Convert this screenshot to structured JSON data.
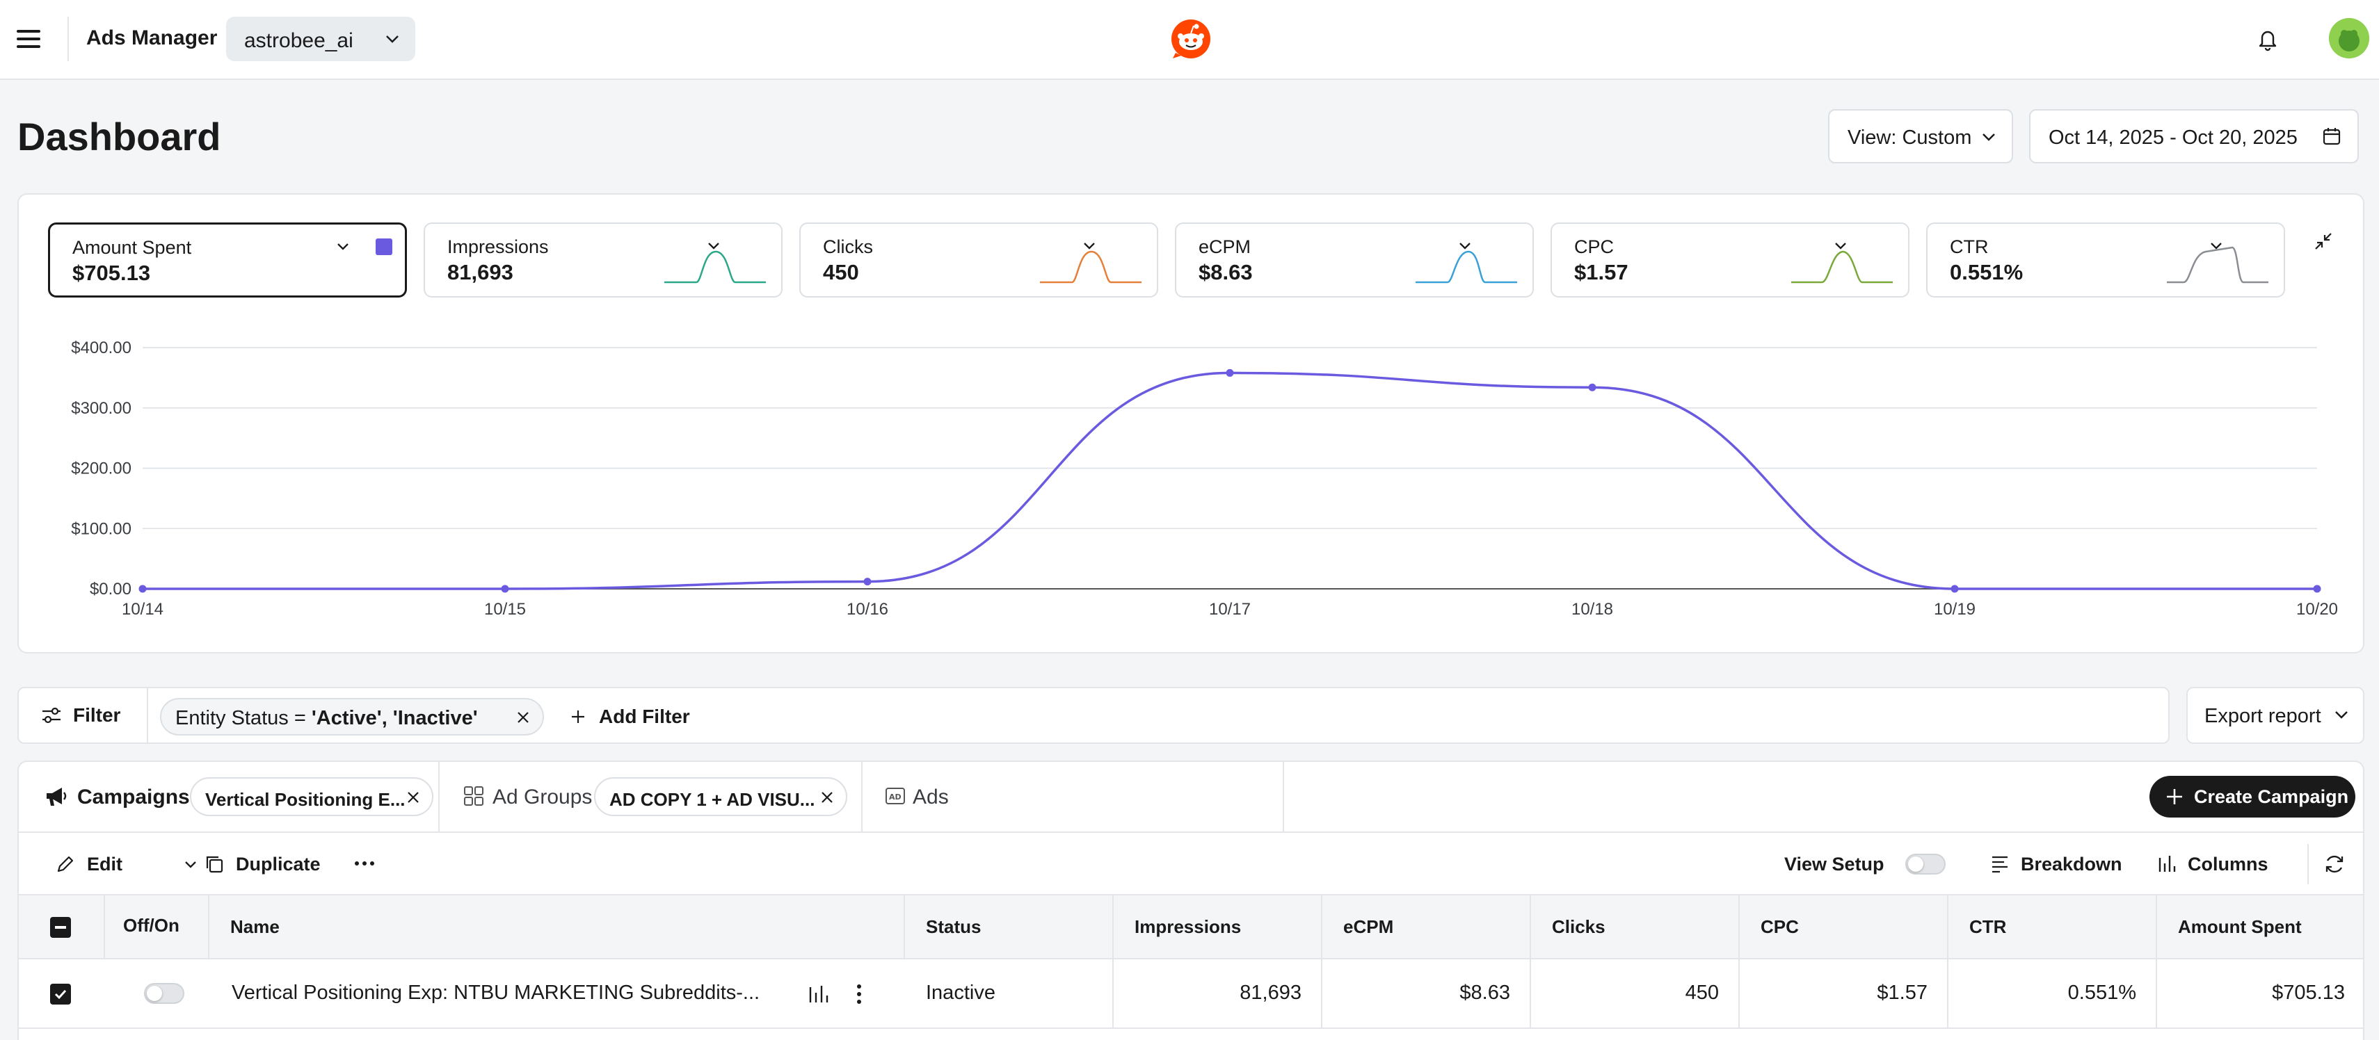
{
  "topbar": {
    "app_title": "Ads Manager",
    "account": "astrobee_ai"
  },
  "header": {
    "title": "Dashboard",
    "view_label": "View: Custom",
    "date_range": "Oct 14, 2025 - Oct 20, 2025"
  },
  "metrics": [
    {
      "label": "Amount Spent",
      "value": "$705.13",
      "color": "#6a5ae0",
      "selected": true
    },
    {
      "label": "Impressions",
      "value": "81,693",
      "color": "#2aa889"
    },
    {
      "label": "Clicks",
      "value": "450",
      "color": "#e5803a"
    },
    {
      "label": "eCPM",
      "value": "$8.63",
      "color": "#3aa0d8"
    },
    {
      "label": "CPC",
      "value": "$1.57",
      "color": "#7aa83a"
    },
    {
      "label": "CTR",
      "value": "0.551%",
      "color": "#8a8d92"
    }
  ],
  "chart_data": {
    "type": "line",
    "x": [
      "10/14",
      "10/15",
      "10/16",
      "10/17",
      "10/18",
      "10/19",
      "10/20"
    ],
    "series": [
      {
        "name": "Amount Spent",
        "values": [
          0,
          0,
          12,
          358,
          334,
          0,
          0
        ],
        "color": "#6a5ae0"
      }
    ],
    "y_ticks": [
      "$0.00",
      "$100.00",
      "$200.00",
      "$300.00",
      "$400.00"
    ],
    "ylim": [
      0,
      400
    ],
    "grid": true
  },
  "filter": {
    "button_label": "Filter",
    "chip_prefix": "Entity Status = ",
    "chip_value": "'Active', 'Inactive'",
    "add_label": "Add Filter",
    "export_label": "Export report"
  },
  "tabs": {
    "campaigns_label": "Campaigns",
    "campaigns_chip": "Vertical Positioning E...",
    "adgroups_label": "Ad Groups",
    "adgroups_chip": "AD COPY 1 + AD VISU...",
    "ads_label": "Ads",
    "create_label": "Create Campaign"
  },
  "toolbar": {
    "edit": "Edit",
    "duplicate": "Duplicate",
    "view_setup": "View Setup",
    "breakdown": "Breakdown",
    "columns": "Columns"
  },
  "table": {
    "headers": [
      "Off/On",
      "Name",
      "Status",
      "Impressions",
      "eCPM",
      "Clicks",
      "CPC",
      "CTR",
      "Amount Spent"
    ],
    "rows": [
      {
        "name": "Vertical Positioning Exp: NTBU MARKETING Subreddits-...",
        "status": "Inactive",
        "impressions": "81,693",
        "ecpm": "$8.63",
        "clicks": "450",
        "cpc": "$1.57",
        "ctr": "0.551%",
        "amount_spent": "$705.13"
      }
    ]
  }
}
